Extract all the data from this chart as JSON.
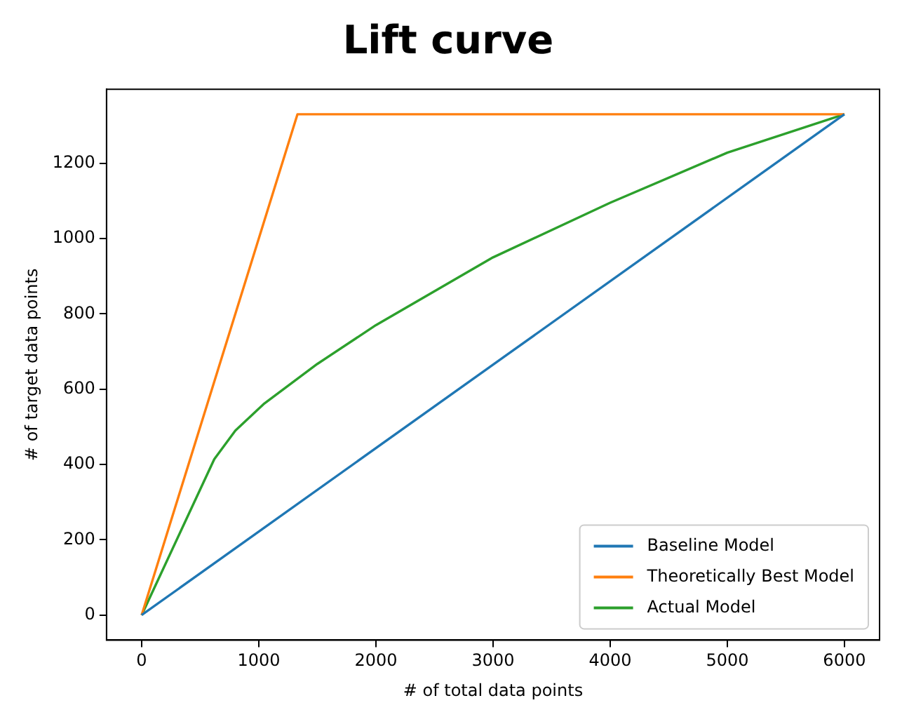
{
  "chart_data": {
    "type": "line",
    "title": "Lift curve",
    "xlabel": "# of total data points",
    "ylabel": "# of target data points",
    "xlim": [
      -300,
      6300
    ],
    "ylim": [
      -66.5,
      1396.5
    ],
    "xticks": [
      0,
      1000,
      2000,
      3000,
      4000,
      5000,
      6000
    ],
    "yticks": [
      0,
      200,
      400,
      600,
      800,
      1000,
      1200
    ],
    "grid": false,
    "legend": "bottom right",
    "marker": "none",
    "line_style": "solid",
    "series": [
      {
        "name": "Baseline Model",
        "color": "#1f77b4",
        "x": [
          0,
          6000
        ],
        "values": [
          0,
          1330
        ]
      },
      {
        "name": "Theoretically Best Model",
        "color": "#ff7f0e",
        "x": [
          0,
          1330,
          6000
        ],
        "values": [
          0,
          1330,
          1330
        ]
      },
      {
        "name": "Actual Model",
        "color": "#2ca02c",
        "x": [
          0,
          620,
          800,
          1040,
          1500,
          2000,
          3000,
          4000,
          5000,
          6000
        ],
        "values": [
          0,
          414,
          490,
          560,
          667,
          770,
          950,
          1095,
          1228,
          1330
        ]
      }
    ]
  }
}
